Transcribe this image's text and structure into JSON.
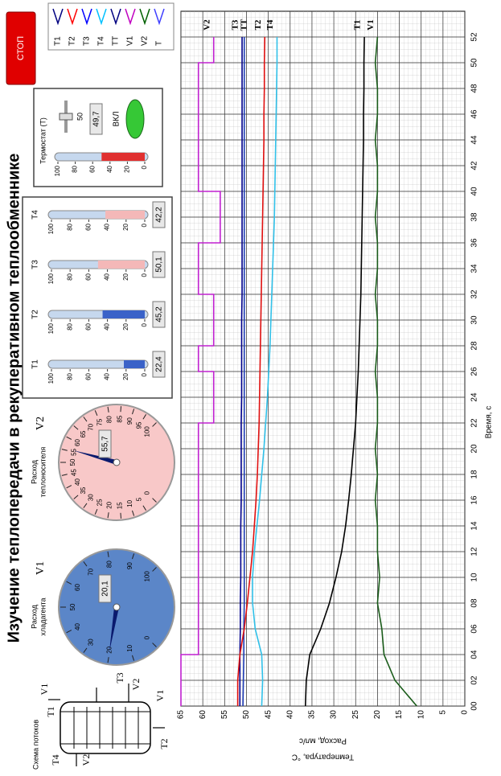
{
  "title": "Изучение теплопередачи в рекуперативном теплообменнике",
  "stop_button": "СТОП",
  "plot_legend": [
    {
      "name": "T1",
      "color": "#000080"
    },
    {
      "name": "T2",
      "color": "#ff0000"
    },
    {
      "name": "T3",
      "color": "#0000ff"
    },
    {
      "name": "T4",
      "color": "#00c0ff"
    },
    {
      "name": "TT",
      "color": "#000080"
    },
    {
      "name": "V1",
      "color": "#c000c0"
    },
    {
      "name": "V2",
      "color": "#006000"
    },
    {
      "name": "T",
      "color": "#4040ff"
    }
  ],
  "scheme": {
    "title": "Схема потоков",
    "labels": [
      "T1",
      "V1",
      "V1",
      "T2",
      "T3",
      "V2",
      "T4",
      "V2"
    ]
  },
  "gauges": [
    {
      "label_lines": [
        "Расход",
        "хладагента"
      ],
      "symbol": "V1",
      "value": 20.1,
      "value_label": "20,1",
      "color": "#5b86c8",
      "scale": [
        0,
        10,
        20,
        30,
        40,
        50,
        60,
        70,
        80,
        90,
        100
      ]
    },
    {
      "label_lines": [
        "Расход",
        "теплоносителя"
      ],
      "symbol": "V2",
      "value": 55.7,
      "value_label": "55,7",
      "color": "#f8c8c8",
      "scale": [
        0,
        5,
        10,
        15,
        20,
        25,
        30,
        35,
        40,
        45,
        50,
        55,
        60,
        65,
        70,
        75,
        80,
        85,
        90,
        95,
        100
      ]
    }
  ],
  "thermometers": {
    "scale": [
      0,
      20,
      40,
      60,
      80,
      100
    ],
    "items": [
      {
        "name": "T1",
        "value": 22.4,
        "value_label": "22,4",
        "color": "#3a62c8"
      },
      {
        "name": "T2",
        "value": 45.2,
        "value_label": "45,2",
        "color": "#3a62c8"
      },
      {
        "name": "T3",
        "value": 50.1,
        "value_label": "50,1",
        "color": "#f4b8b8"
      },
      {
        "name": "T4",
        "value": 42.2,
        "value_label": "42,2",
        "color": "#f4b8b8"
      }
    ]
  },
  "thermostat": {
    "label": "Термостат (T)",
    "setpoint": 50,
    "value": 49.7,
    "value_label": "49,7",
    "button": "ВКЛ",
    "color": "#e03030",
    "scale": [
      0,
      20,
      40,
      60,
      80,
      100
    ]
  },
  "chart_data": {
    "type": "line",
    "x_label": "Время, с",
    "y_label": "Температура, °C",
    "y_label_2": "Расход, мл/с",
    "x": [
      0,
      2,
      4,
      6,
      8,
      10,
      12,
      14,
      16,
      18,
      20,
      22,
      24,
      26,
      28,
      30,
      32,
      34,
      36,
      38,
      40,
      42,
      44,
      46,
      48,
      50,
      52
    ],
    "xlim": [
      0,
      54
    ],
    "xticks": [
      {
        "value": 0,
        "label": "00"
      },
      {
        "value": 2,
        "label": "02"
      },
      {
        "value": 4,
        "label": "04"
      },
      {
        "value": 6,
        "label": "06"
      },
      {
        "value": 8,
        "label": "08"
      },
      10,
      12,
      14,
      16,
      18,
      20,
      22,
      24,
      26,
      28,
      30,
      32,
      34,
      36,
      38,
      40,
      42,
      44,
      46,
      48,
      50,
      52
    ],
    "ylim": [
      0,
      65
    ],
    "yticks": [
      0,
      5,
      10,
      15,
      20,
      25,
      30,
      35,
      40,
      45,
      50,
      55,
      60,
      65
    ],
    "grid": true,
    "series": [
      {
        "name": "T1",
        "color": "#000000",
        "values": [
          36.5,
          36.3,
          35.5,
          33,
          31,
          29.5,
          28.2,
          27.3,
          26.6,
          26,
          25.5,
          25,
          24.7,
          24.4,
          24.2,
          24,
          23.8,
          23.7,
          23.6,
          23.5,
          23.4,
          23.3,
          23.2,
          23.2,
          23.1,
          23.1,
          23
        ]
      },
      {
        "name": "V1",
        "color": "#1a5c1a",
        "values": [
          11,
          16,
          18.5,
          19,
          20,
          19.5,
          20,
          20,
          20.5,
          20,
          20.5,
          20,
          20,
          20.5,
          20,
          20,
          20.5,
          20,
          20,
          20.5,
          20,
          20,
          20.5,
          20,
          20,
          20.5,
          20
        ]
      },
      {
        "name": "T3",
        "color": "#00008b",
        "values": [
          51.5,
          51.5,
          51.5,
          51.4,
          51.4,
          51.3,
          51.3,
          51.3,
          51.2,
          51.2,
          51.2,
          51.2,
          51.1,
          51.1,
          51.1,
          51.1,
          51,
          51,
          51,
          51,
          51,
          51,
          51,
          51,
          51,
          51,
          51
        ]
      },
      {
        "name": "TT",
        "color": "#1e3cb4",
        "values": [
          50.8,
          50.7,
          50.6,
          50.6,
          50.5,
          50.5,
          50.5,
          50.5,
          50.5,
          50.5,
          50.5,
          50.5,
          50.5,
          50.5,
          50.5,
          50.5,
          50.5,
          50.5,
          50.5,
          50.5,
          50.5,
          50.5,
          50.5,
          50.5,
          50.5,
          50.5,
          50.5
        ]
      },
      {
        "name": "T2",
        "color": "#e01010",
        "values": [
          52,
          52,
          51.5,
          50.5,
          49.8,
          49.2,
          48.6,
          48.2,
          47.8,
          47.5,
          47.3,
          47.1,
          47,
          46.9,
          46.8,
          46.7,
          46.6,
          46.5,
          46.4,
          46.3,
          46.2,
          46.1,
          46,
          46,
          45.9,
          45.9,
          45.8
        ]
      },
      {
        "name": "T4",
        "color": "#30c0e8",
        "values": [
          46.5,
          46.3,
          46.5,
          48,
          48.6,
          48.6,
          48.2,
          47.6,
          47,
          46.5,
          46,
          45.6,
          45.2,
          44.9,
          44.6,
          44.4,
          44.2,
          44,
          43.8,
          43.6,
          43.5,
          43.4,
          43.3,
          43.2,
          43.1,
          43,
          43
        ]
      },
      {
        "name": "V2",
        "color": "#c020d0",
        "step": true,
        "values": [
          65,
          65,
          61,
          61,
          61,
          61,
          61,
          61,
          61,
          61,
          61,
          57.5,
          57.5,
          61,
          57.5,
          57.5,
          61,
          61,
          56,
          56,
          61,
          61,
          61,
          61,
          61,
          57.5,
          57.5
        ]
      }
    ]
  }
}
